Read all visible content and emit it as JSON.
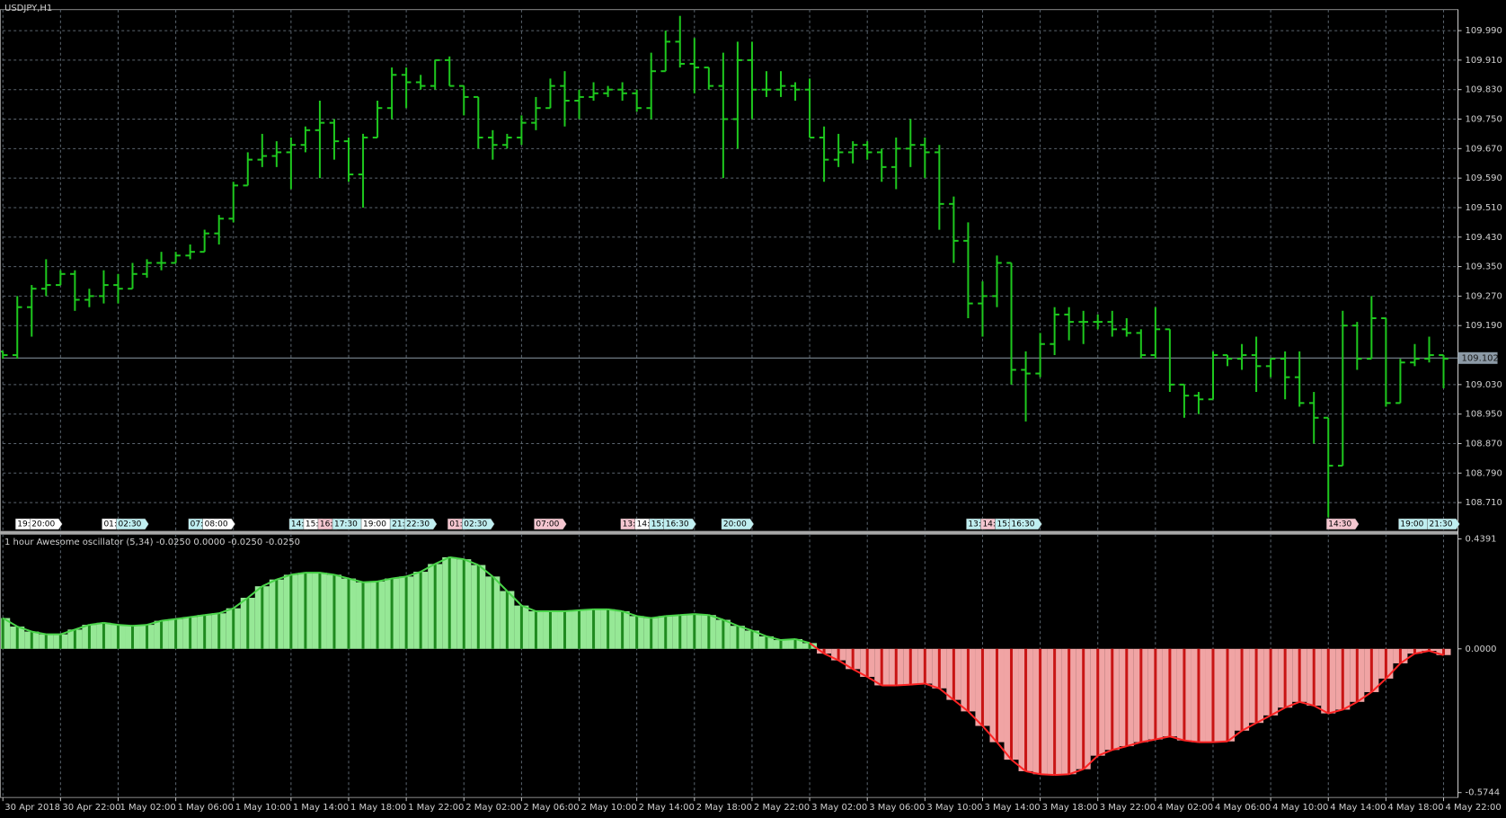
{
  "chart_data": [
    {
      "type": "ohlc",
      "title": "USDJPY,H1",
      "color": "#1ec81e",
      "grid": true,
      "ylim": [
        108.632,
        110.047
      ],
      "yticks": [
        {
          "value": 108.71,
          "label": "108.710"
        },
        {
          "value": 108.79,
          "label": "108.790"
        },
        {
          "value": 108.87,
          "label": "108.870"
        },
        {
          "value": 108.95,
          "label": "108.950"
        },
        {
          "value": 109.03,
          "label": "109.030"
        },
        {
          "value": 109.19,
          "label": "109.190"
        },
        {
          "value": 109.27,
          "label": "109.270"
        },
        {
          "value": 109.35,
          "label": "109.350"
        },
        {
          "value": 109.43,
          "label": "109.430"
        },
        {
          "value": 109.51,
          "label": "109.510"
        },
        {
          "value": 109.59,
          "label": "109.590"
        },
        {
          "value": 109.67,
          "label": "109.670"
        },
        {
          "value": 109.75,
          "label": "109.750"
        },
        {
          "value": 109.83,
          "label": "109.830"
        },
        {
          "value": 109.91,
          "label": "109.910"
        },
        {
          "value": 109.99,
          "label": "109.990"
        }
      ],
      "current_price": 109.102,
      "open": [
        109.12,
        109.11,
        109.24,
        109.29,
        109.3,
        109.33,
        109.26,
        109.27,
        109.3,
        109.29,
        109.33,
        109.36,
        109.36,
        109.38,
        109.39,
        109.44,
        109.48,
        109.57,
        109.64,
        109.65,
        109.66,
        109.68,
        109.72,
        109.74,
        109.69,
        109.6,
        109.7,
        109.78,
        109.87,
        109.85,
        109.84,
        109.91,
        109.84,
        109.81,
        109.7,
        109.68,
        109.7,
        109.74,
        109.78,
        109.84,
        109.8,
        109.81,
        109.82,
        109.83,
        109.82,
        109.78,
        109.88,
        109.96,
        109.9,
        109.89,
        109.84,
        109.75,
        109.91,
        109.83,
        109.83,
        109.84,
        109.83,
        109.7,
        109.64,
        109.66,
        109.68,
        109.66,
        109.62,
        109.67,
        109.68,
        109.66,
        109.52,
        109.42,
        109.25,
        109.27,
        109.36,
        109.07,
        109.06,
        109.14,
        109.22,
        109.2,
        109.2,
        109.2,
        109.18,
        109.17,
        109.11,
        109.18,
        109.03,
        109.0,
        108.99,
        109.11,
        109.1,
        109.11,
        109.08,
        109.1,
        109.05,
        108.98,
        108.94,
        108.81,
        109.19,
        109.1,
        109.21,
        108.98,
        109.09,
        109.1,
        109.11
      ],
      "high": [
        109.12,
        109.27,
        109.3,
        109.37,
        109.34,
        109.34,
        109.29,
        109.34,
        109.33,
        109.36,
        109.37,
        109.39,
        109.39,
        109.41,
        109.45,
        109.49,
        109.58,
        109.66,
        109.71,
        109.69,
        109.7,
        109.73,
        109.8,
        109.75,
        109.7,
        109.71,
        109.8,
        109.89,
        109.89,
        109.87,
        109.91,
        109.92,
        109.84,
        109.81,
        109.72,
        109.71,
        109.76,
        109.81,
        109.86,
        109.88,
        109.83,
        109.85,
        109.84,
        109.85,
        109.83,
        109.93,
        109.99,
        110.03,
        109.97,
        109.89,
        109.93,
        109.96,
        109.96,
        109.88,
        109.88,
        109.85,
        109.86,
        109.73,
        109.71,
        109.69,
        109.69,
        109.67,
        109.7,
        109.75,
        109.7,
        109.68,
        109.54,
        109.47,
        109.31,
        109.38,
        109.36,
        109.12,
        109.17,
        109.24,
        109.24,
        109.23,
        109.22,
        109.23,
        109.21,
        109.18,
        109.24,
        109.18,
        109.03,
        109.01,
        109.12,
        109.11,
        109.14,
        109.16,
        109.1,
        109.12,
        109.12,
        109.01,
        108.94,
        109.23,
        109.2,
        109.27,
        109.21,
        109.1,
        109.14,
        109.16,
        109.11
      ],
      "low": [
        109.1,
        109.1,
        109.16,
        109.27,
        109.3,
        109.23,
        109.24,
        109.25,
        109.25,
        109.29,
        109.32,
        109.34,
        109.36,
        109.37,
        109.39,
        109.41,
        109.47,
        109.57,
        109.62,
        109.62,
        109.56,
        109.66,
        109.59,
        109.64,
        109.58,
        109.51,
        109.7,
        109.75,
        109.78,
        109.83,
        109.83,
        109.84,
        109.76,
        109.67,
        109.64,
        109.67,
        109.68,
        109.72,
        109.78,
        109.73,
        109.75,
        109.8,
        109.81,
        109.8,
        109.77,
        109.75,
        109.88,
        109.89,
        109.82,
        109.83,
        109.59,
        109.67,
        109.75,
        109.81,
        109.81,
        109.8,
        109.7,
        109.58,
        109.62,
        109.63,
        109.64,
        109.58,
        109.56,
        109.62,
        109.59,
        109.45,
        109.36,
        109.21,
        109.16,
        109.24,
        109.03,
        108.93,
        109.05,
        109.11,
        109.15,
        109.14,
        109.18,
        109.16,
        109.16,
        109.1,
        109.1,
        109.01,
        108.94,
        108.95,
        108.99,
        109.08,
        109.07,
        109.01,
        109.05,
        108.99,
        108.97,
        108.87,
        108.67,
        108.81,
        109.07,
        109.1,
        108.97,
        108.98,
        109.08,
        109.09,
        109.02
      ],
      "close": [
        109.11,
        109.24,
        109.29,
        109.3,
        109.33,
        109.26,
        109.27,
        109.3,
        109.29,
        109.33,
        109.36,
        109.36,
        109.38,
        109.39,
        109.44,
        109.48,
        109.57,
        109.64,
        109.65,
        109.66,
        109.68,
        109.72,
        109.74,
        109.69,
        109.6,
        109.7,
        109.78,
        109.87,
        109.85,
        109.84,
        109.91,
        109.84,
        109.81,
        109.7,
        109.68,
        109.7,
        109.74,
        109.78,
        109.84,
        109.8,
        109.81,
        109.82,
        109.83,
        109.82,
        109.78,
        109.88,
        109.96,
        109.9,
        109.89,
        109.84,
        109.75,
        109.91,
        109.83,
        109.83,
        109.84,
        109.83,
        109.7,
        109.64,
        109.66,
        109.68,
        109.66,
        109.62,
        109.67,
        109.68,
        109.66,
        109.52,
        109.42,
        109.25,
        109.27,
        109.36,
        109.07,
        109.06,
        109.14,
        109.22,
        109.2,
        109.2,
        109.2,
        109.18,
        109.17,
        109.11,
        109.18,
        109.03,
        109.0,
        108.99,
        109.11,
        109.1,
        109.11,
        109.08,
        109.1,
        109.05,
        108.98,
        108.94,
        108.81,
        109.19,
        109.1,
        109.21,
        108.98,
        109.09,
        109.1,
        109.11,
        109.1
      ],
      "events": [
        {
          "label": "19:",
          "bar": 1,
          "color": "#ffffff"
        },
        {
          "label": "20:00",
          "bar": 2,
          "color": "#ffffff"
        },
        {
          "label": "01:",
          "bar": 7,
          "color": "#ffffff"
        },
        {
          "label": "02:30",
          "bar": 8,
          "color": "#bfeef0"
        },
        {
          "label": "07:",
          "bar": 13,
          "color": "#bfeef0"
        },
        {
          "label": "08:00",
          "bar": 14,
          "color": "#ffffff"
        },
        {
          "label": "14:",
          "bar": 20,
          "color": "#bfeef0"
        },
        {
          "label": "15:",
          "bar": 21,
          "color": "#ffffff"
        },
        {
          "label": "16:",
          "bar": 22,
          "color": "#f5c6d0"
        },
        {
          "label": "17:30",
          "bar": 23,
          "color": "#bfeef0"
        },
        {
          "label": "19:00",
          "bar": 25,
          "color": "#ffffff"
        },
        {
          "label": "21:",
          "bar": 27,
          "color": "#bfeef0"
        },
        {
          "label": "22:30",
          "bar": 28,
          "color": "#bfeef0"
        },
        {
          "label": "01:",
          "bar": 31,
          "color": "#f5c6d0"
        },
        {
          "label": "02:30",
          "bar": 32,
          "color": "#bfeef0"
        },
        {
          "label": "07:00",
          "bar": 37,
          "color": "#f5c6d0"
        },
        {
          "label": "13:",
          "bar": 43,
          "color": "#f5c6d0"
        },
        {
          "label": "14:",
          "bar": 44,
          "color": "#ffffff"
        },
        {
          "label": "15:",
          "bar": 45,
          "color": "#bfeef0"
        },
        {
          "label": "16:30",
          "bar": 46,
          "color": "#bfeef0"
        },
        {
          "label": "20:00",
          "bar": 50,
          "color": "#bfeef0"
        },
        {
          "label": "13:",
          "bar": 67,
          "color": "#bfeef0"
        },
        {
          "label": "14:",
          "bar": 68,
          "color": "#f5c6d0"
        },
        {
          "label": "15:",
          "bar": 69,
          "color": "#bfeef0"
        },
        {
          "label": "16:30",
          "bar": 70,
          "color": "#bfeef0"
        },
        {
          "label": "14:30",
          "bar": 92,
          "color": "#f5c6d0"
        },
        {
          "label": "19:00",
          "bar": 97,
          "color": "#bfeef0"
        },
        {
          "label": "21:30",
          "bar": 99,
          "color": "#bfeef0"
        }
      ]
    },
    {
      "type": "bar",
      "title": "1 hour Awesome oscillator (5,34) -0.0250 0.0000 -0.0250 -0.0250",
      "ylim": [
        -0.594,
        0.458
      ],
      "yticks": [
        0.4391,
        {
          "value": 0,
          "label": "0.0000"
        },
        -0.5744
      ],
      "colors": {
        "positive": "#96e896",
        "negative": "#f0a4a4"
      },
      "line_colors": {
        "positive": "#1f8a1f",
        "negative": "#c81414"
      },
      "edge_colors": {
        "positive": "#4ad44a",
        "negative": "#ff2424"
      },
      "categories": [
        "30 Apr 2018",
        null,
        null,
        null,
        "30 Apr 22:00",
        null,
        null,
        null,
        "1 May 02:00",
        null,
        null,
        null,
        "1 May 06:00",
        null,
        null,
        null,
        "1 May 10:00",
        null,
        null,
        null,
        "1 May 14:00",
        null,
        null,
        null,
        "1 May 18:00",
        null,
        null,
        null,
        "1 May 22:00",
        null,
        null,
        null,
        "2 May 02:00",
        null,
        null,
        null,
        "2 May 06:00",
        null,
        null,
        null,
        "2 May 10:00",
        null,
        null,
        null,
        "2 May 14:00",
        null,
        null,
        null,
        "2 May 18:00",
        null,
        null,
        null,
        "2 May 22:00",
        null,
        null,
        null,
        "3 May 02:00",
        null,
        null,
        null,
        "3 May 06:00",
        null,
        null,
        null,
        "3 May 10:00",
        null,
        null,
        null,
        "3 May 14:00",
        null,
        null,
        null,
        "3 May 18:00",
        null,
        null,
        null,
        "3 May 22:00",
        null,
        null,
        null,
        "4 May 02:00",
        null,
        null,
        null,
        "4 May 06:00",
        null,
        null,
        null,
        "4 May 10:00",
        null,
        null,
        null,
        "4 May 14:00",
        null,
        null,
        null,
        "4 May 18:00",
        null,
        null,
        null,
        "4 May 22:00"
      ],
      "values": [
        0.123,
        0.089,
        0.069,
        0.058,
        0.058,
        0.077,
        0.096,
        0.104,
        0.096,
        0.092,
        0.096,
        0.112,
        0.119,
        0.127,
        0.135,
        0.142,
        0.162,
        0.204,
        0.25,
        0.277,
        0.296,
        0.304,
        0.304,
        0.296,
        0.281,
        0.266,
        0.269,
        0.281,
        0.289,
        0.308,
        0.339,
        0.366,
        0.358,
        0.335,
        0.289,
        0.231,
        0.173,
        0.15,
        0.15,
        0.15,
        0.154,
        0.158,
        0.158,
        0.15,
        0.131,
        0.123,
        0.131,
        0.135,
        0.139,
        0.135,
        0.116,
        0.092,
        0.073,
        0.05,
        0.035,
        0.039,
        0.023,
        -0.019,
        -0.046,
        -0.081,
        -0.112,
        -0.146,
        -0.146,
        -0.143,
        -0.139,
        -0.158,
        -0.204,
        -0.25,
        -0.308,
        -0.373,
        -0.443,
        -0.489,
        -0.501,
        -0.504,
        -0.501,
        -0.481,
        -0.427,
        -0.404,
        -0.389,
        -0.373,
        -0.362,
        -0.35,
        -0.366,
        -0.373,
        -0.373,
        -0.37,
        -0.327,
        -0.296,
        -0.266,
        -0.235,
        -0.212,
        -0.227,
        -0.258,
        -0.243,
        -0.212,
        -0.173,
        -0.119,
        -0.058,
        -0.019,
        -0.008,
        -0.025
      ]
    }
  ]
}
